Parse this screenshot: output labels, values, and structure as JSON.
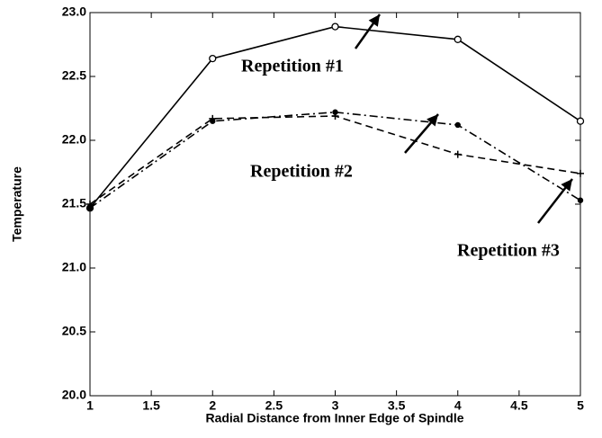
{
  "chart_data": {
    "type": "line",
    "xlabel": "Radial Distance from Inner Edge of Spindle",
    "ylabel": "Temperature",
    "x": [
      1,
      2,
      3,
      4,
      5
    ],
    "series": [
      {
        "name": "Repetition #1",
        "color": "#000000",
        "dash": "solid",
        "marker": "circle",
        "values": [
          21.47,
          22.64,
          22.89,
          22.79,
          22.15
        ]
      },
      {
        "name": "Repetition #2",
        "color": "#000000",
        "dash": "dashed",
        "marker": "plus",
        "values": [
          21.5,
          22.17,
          22.19,
          21.89,
          21.74
        ]
      },
      {
        "name": "Repetition #3",
        "color": "#000000",
        "dash": "dashdot",
        "marker": "dot",
        "values": [
          21.47,
          22.15,
          22.22,
          22.12,
          21.53
        ]
      }
    ],
    "xlim": [
      1,
      5
    ],
    "xticks": [
      1,
      1.5,
      2,
      2.5,
      3,
      3.5,
      4,
      4.5,
      5
    ],
    "ylim": [
      20,
      23
    ],
    "yticks": [
      {
        "value": 20,
        "label": "20.0"
      },
      20.5,
      {
        "value": 21,
        "label": "21.0"
      },
      21.5,
      {
        "value": 22,
        "label": "22.0"
      },
      22.5,
      {
        "value": 23,
        "label": "23.0"
      }
    ],
    "grid": false
  }
}
